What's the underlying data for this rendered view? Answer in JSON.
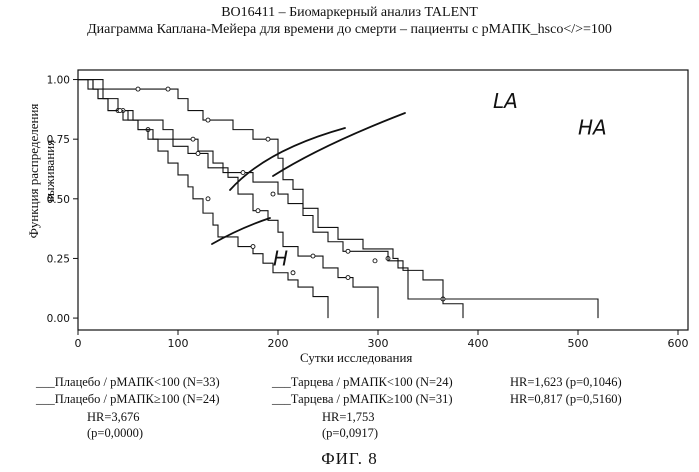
{
  "header": {
    "line1": "BO16411 – Биомаркерный анализ TALENT",
    "line2": "Диаграмма Каплана-Мейера для времени до смерти – пациенты с pMAПК_hsco</>=100"
  },
  "chart_data": {
    "type": "line",
    "title": "Диаграмма Каплана-Мейера для времени до смерти – пациенты с pMAПК_hsco</>=100",
    "xlabel": "Сутки исследования",
    "ylabel_line1": "Функция распределения",
    "ylabel_line2": "выживания",
    "xlim": [
      0,
      610
    ],
    "ylim": [
      -0.05,
      1.04
    ],
    "x_ticks": [
      0,
      100,
      200,
      300,
      400,
      500,
      600
    ],
    "x_tick_labels": [
      "0",
      "100",
      "200",
      "300",
      "400",
      "500",
      "600"
    ],
    "y_ticks": [
      0,
      0.25,
      0.5,
      0.75,
      1.0
    ],
    "y_tick_labels": [
      "0.00",
      "0.25",
      "0.50",
      "0.75",
      "1.00"
    ],
    "series": [
      {
        "label": "LA",
        "steps": [
          [
            0,
            1.0
          ],
          [
            25,
            0.96
          ],
          [
            95,
            0.96
          ],
          [
            100,
            0.92
          ],
          [
            110,
            0.87
          ],
          [
            125,
            0.83
          ],
          [
            155,
            0.79
          ],
          [
            175,
            0.75
          ],
          [
            200,
            0.67
          ],
          [
            205,
            0.58
          ],
          [
            215,
            0.54
          ],
          [
            225,
            0.46
          ],
          [
            240,
            0.38
          ],
          [
            260,
            0.33
          ],
          [
            285,
            0.29
          ],
          [
            315,
            0.25
          ],
          [
            320,
            0.21
          ],
          [
            330,
            0.08
          ],
          [
            520,
            0.0
          ]
        ],
        "censor": [
          [
            60,
            0.96
          ],
          [
            90,
            0.96
          ],
          [
            130,
            0.83
          ],
          [
            190,
            0.75
          ],
          [
            310,
            0.25
          ],
          [
            365,
            0.08
          ]
        ]
      },
      {
        "label": "HA",
        "steps": [
          [
            0,
            1.0
          ],
          [
            15,
            0.96
          ],
          [
            20,
            0.92
          ],
          [
            30,
            0.87
          ],
          [
            55,
            0.83
          ],
          [
            85,
            0.79
          ],
          [
            95,
            0.75
          ],
          [
            120,
            0.7
          ],
          [
            135,
            0.65
          ],
          [
            145,
            0.61
          ],
          [
            175,
            0.57
          ],
          [
            200,
            0.52
          ],
          [
            210,
            0.48
          ],
          [
            225,
            0.43
          ],
          [
            235,
            0.36
          ],
          [
            250,
            0.32
          ],
          [
            265,
            0.28
          ],
          [
            310,
            0.24
          ],
          [
            325,
            0.2
          ],
          [
            345,
            0.16
          ],
          [
            365,
            0.06
          ],
          [
            385,
            0.0
          ]
        ],
        "censor": [
          [
            40,
            0.87
          ],
          [
            70,
            0.79
          ],
          [
            115,
            0.75
          ],
          [
            165,
            0.61
          ],
          [
            195,
            0.52
          ],
          [
            270,
            0.28
          ],
          [
            297,
            0.24
          ]
        ]
      },
      {
        "label": "H",
        "steps": [
          [
            0,
            1.0
          ],
          [
            10,
            0.96
          ],
          [
            25,
            0.92
          ],
          [
            40,
            0.87
          ],
          [
            50,
            0.83
          ],
          [
            60,
            0.79
          ],
          [
            70,
            0.75
          ],
          [
            80,
            0.7
          ],
          [
            90,
            0.65
          ],
          [
            100,
            0.6
          ],
          [
            110,
            0.55
          ],
          [
            115,
            0.5
          ],
          [
            125,
            0.44
          ],
          [
            135,
            0.39
          ],
          [
            140,
            0.34
          ],
          [
            160,
            0.3
          ],
          [
            175,
            0.27
          ],
          [
            185,
            0.23
          ],
          [
            195,
            0.19
          ],
          [
            210,
            0.16
          ],
          [
            220,
            0.13
          ],
          [
            235,
            0.09
          ],
          [
            250,
            0.0
          ]
        ],
        "censor": [
          [
            45,
            0.87
          ],
          [
            130,
            0.5
          ],
          [
            175,
            0.3
          ],
          [
            215,
            0.19
          ]
        ]
      },
      {
        "label": "",
        "steps": [
          [
            0,
            1.0
          ],
          [
            15,
            0.96
          ],
          [
            20,
            0.92
          ],
          [
            30,
            0.87
          ],
          [
            45,
            0.83
          ],
          [
            60,
            0.79
          ],
          [
            75,
            0.75
          ],
          [
            95,
            0.72
          ],
          [
            110,
            0.69
          ],
          [
            130,
            0.63
          ],
          [
            150,
            0.59
          ],
          [
            160,
            0.52
          ],
          [
            175,
            0.45
          ],
          [
            190,
            0.41
          ],
          [
            200,
            0.36
          ],
          [
            205,
            0.3
          ],
          [
            220,
            0.26
          ],
          [
            245,
            0.21
          ],
          [
            260,
            0.17
          ],
          [
            275,
            0.13
          ],
          [
            300,
            0.0
          ]
        ],
        "censor": [
          [
            42,
            0.87
          ],
          [
            120,
            0.69
          ],
          [
            180,
            0.45
          ],
          [
            235,
            0.26
          ],
          [
            270,
            0.17
          ]
        ]
      }
    ],
    "annotations": [
      {
        "text": "LA",
        "x": 415,
        "y": 0.88
      },
      {
        "text": "HA",
        "x": 500,
        "y": 0.77
      },
      {
        "text": "H",
        "x": 195,
        "y": 0.22
      }
    ]
  },
  "legend": {
    "row1_a": "___Плацебо / pMAПК<100 (N=33)",
    "row1_b": "___Тарцева / pMAПК<100 (N=24)",
    "row1_hr": "HR=1,623 (p=0,1046)",
    "row2_a": "___Плацебо / pMAПК≥100 (N=24)",
    "row2_b": "___Тарцева / pMAПК≥100 (N=31)",
    "row2_hr": "HR=0,817 (p=0,5160)",
    "row3_hr": "HR=3,676",
    "row3_p": "(p=0,0000)",
    "row3_hr2": "HR=1,753",
    "row4_p2": "(p=0,0917)"
  },
  "figure_label": "ФИГ. 8"
}
